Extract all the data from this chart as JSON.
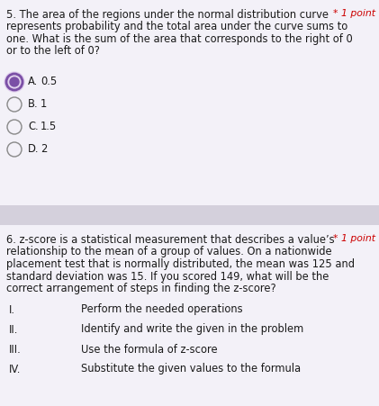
{
  "bg_color": "#eeecf3",
  "section_bg": "#f3f1f8",
  "divider_color": "#d4d0dc",
  "q5_text_line1": "5. The area of the regions under the normal distribution curve",
  "q5_text_line2": "represents probability and the total area under the curve sums to",
  "q5_text_line3": "one. What is the sum of the area that corresponds to the right of 0",
  "q5_text_line4": "or to the left of 0?",
  "points_text": "* 1 point",
  "q5_options": [
    [
      "A.",
      "0.5",
      true
    ],
    [
      "B.",
      "1",
      false
    ],
    [
      "C.",
      "1.5",
      false
    ],
    [
      "D.",
      "2",
      false
    ]
  ],
  "q6_text_line1": "6. z-score is a statistical measurement that describes a value’s",
  "q6_text_line2": "relationship to the mean of a group of values. On a nationwide",
  "q6_text_line3": "placement test that is normally distributed, the mean was 125 and",
  "q6_text_line4": "standard deviation was 15. If you scored 149, what will be the",
  "q6_text_line5": "correct arrangement of steps in finding the z-score?",
  "q6_steps": [
    [
      "I.",
      "Perform the needed operations"
    ],
    [
      "II.",
      "Identify and write the given in the problem"
    ],
    [
      "III.",
      "Use the formula of z-score"
    ],
    [
      "IV.",
      "Substitute the given values to the formula"
    ]
  ],
  "radio_selected_fill": "#7b4fa6",
  "radio_selected_ring": "#c9a8e0",
  "radio_unselected": "#888888",
  "text_color": "#1a1a1a",
  "points_color": "#cc0000",
  "font_size": 8.3,
  "font_size_points": 7.8
}
